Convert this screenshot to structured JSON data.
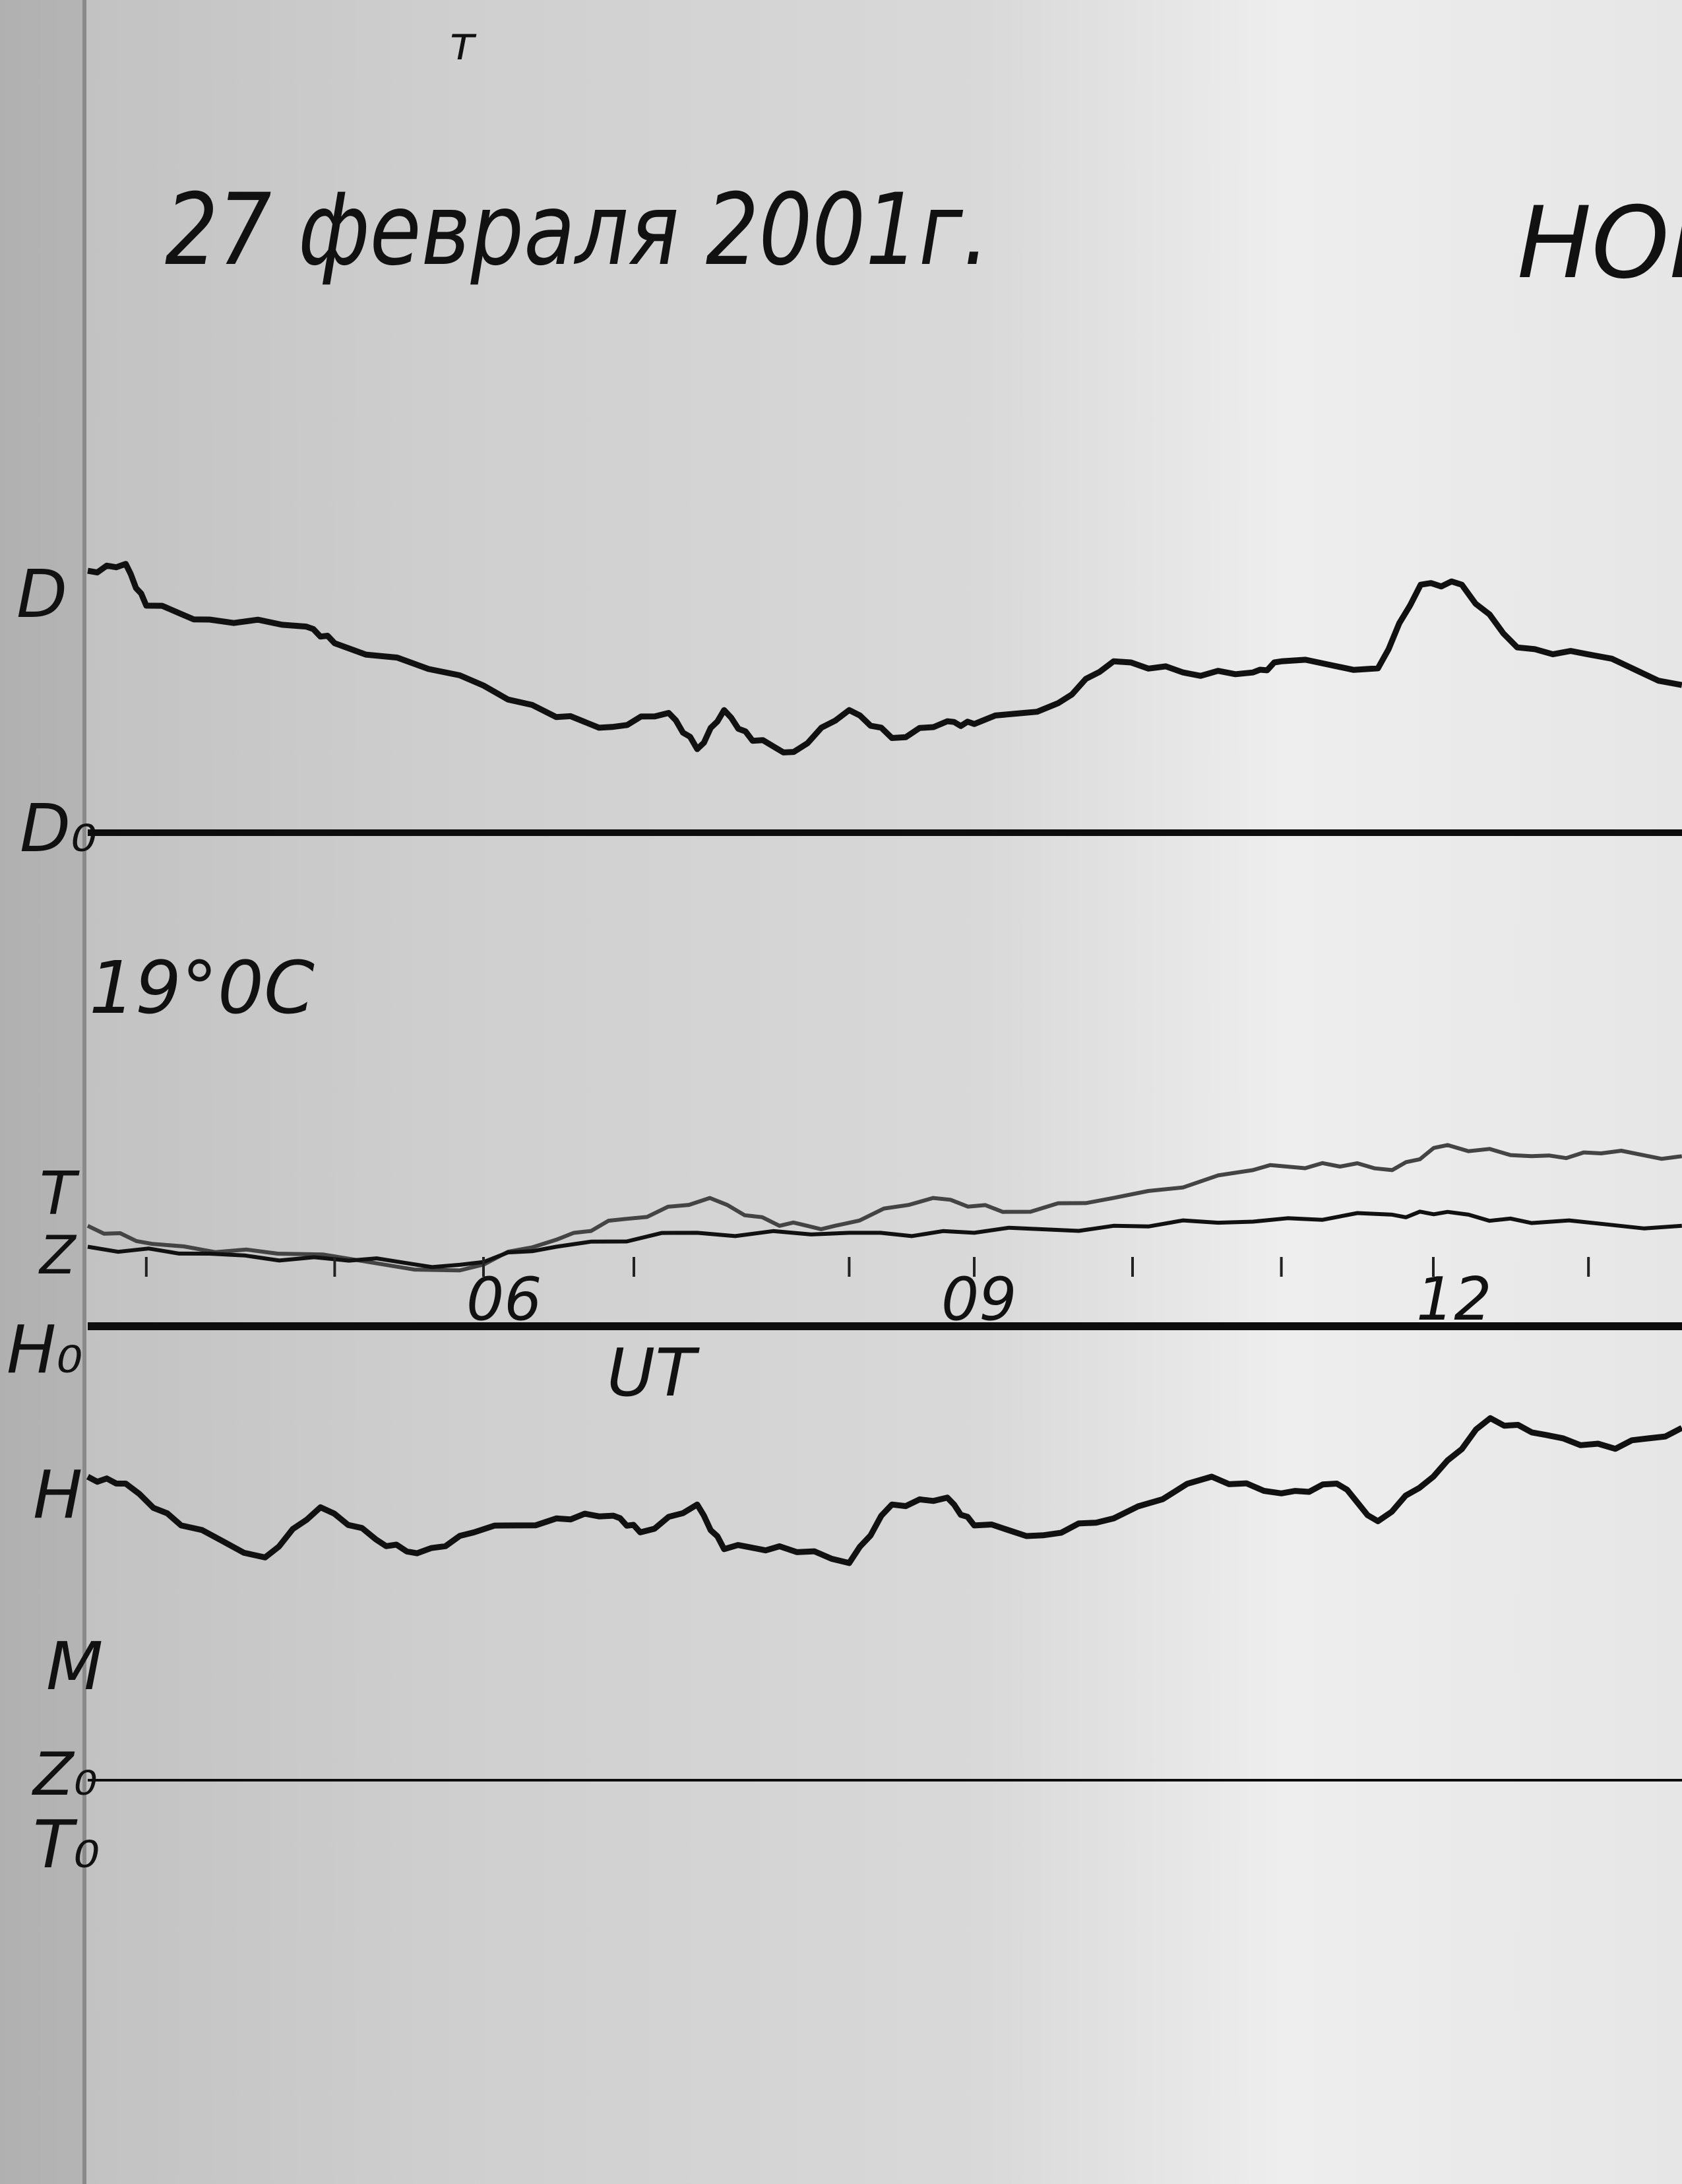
{
  "title": "27 февраля 2001г.",
  "title_right": "НОВ",
  "temperature": "19°0C",
  "mark_top": "т",
  "labels": {
    "D": "D",
    "D0": "D₀",
    "T": "T",
    "Z": "Z",
    "H0": "H₀",
    "H": "H",
    "M": "M",
    "Z0": "Z₀",
    "T0": "T₀"
  },
  "chart_data": {
    "type": "line",
    "xlabel": "UT",
    "x_ticks": [
      "06",
      "09",
      "12"
    ],
    "x_tick_values": [
      6,
      9,
      12
    ],
    "xlim": [
      3.4,
      13.47
    ],
    "grid": false,
    "colors": {
      "trace": "#111111",
      "T": "#444444",
      "baseline": "#0d0d0d",
      "paper": "#d4d4d4"
    },
    "series": [
      {
        "name": "D",
        "baseline": "D0",
        "x": [
          3.4,
          3.64,
          3.77,
          4.17,
          4.78,
          4.96,
          5.75,
          6.36,
          6.72,
          7.07,
          7.25,
          7.42,
          7.6,
          7.86,
          8.21,
          8.48,
          8.83,
          9.0,
          9.53,
          9.88,
          10.32,
          10.76,
          10.94,
          11.55,
          11.82,
          12.08,
          12.43,
          12.88,
          13.47
        ],
        "y": [
          188,
          193,
          163,
          153,
          148,
          136,
          113,
          83,
          76,
          86,
          60,
          88,
          66,
          58,
          88,
          68,
          80,
          78,
          93,
          123,
          115,
          115,
          123,
          118,
          178,
          178,
          133,
          128,
          106
        ]
      },
      {
        "name": "T",
        "baseline": "T0",
        "x": [
          3.4,
          3.81,
          4.6,
          5.75,
          6.36,
          6.8,
          7.33,
          7.77,
          8.12,
          8.74,
          9.18,
          9.88,
          10.76,
          11.2,
          11.64,
          11.99,
          12.52,
          12.96,
          13.47
        ],
        "y": [
          398,
          385,
          378,
          366,
          388,
          403,
          418,
          398,
          398,
          418,
          408,
          418,
          438,
          443,
          438,
          456,
          448,
          450,
          448
        ]
      },
      {
        "name": "Z",
        "baseline": "Z0",
        "x": [
          3.4,
          4.17,
          5.05,
          5.75,
          6.36,
          7.25,
          8.21,
          9.0,
          9.88,
          10.76,
          11.64,
          11.99,
          12.52,
          13.47
        ],
        "y": [
          383,
          378,
          373,
          370,
          383,
          393,
          393,
          393,
          398,
          401,
          406,
          408,
          400,
          398
        ]
      },
      {
        "name": "H",
        "baseline": "H0",
        "x": [
          3.4,
          3.64,
          3.99,
          4.52,
          4.87,
          5.22,
          5.48,
          5.84,
          6.36,
          6.72,
          6.89,
          7.25,
          7.42,
          7.77,
          8.21,
          8.48,
          8.83,
          9.0,
          9.44,
          9.88,
          10.5,
          10.94,
          11.29,
          11.55,
          11.9,
          12.26,
          12.61,
          13.05,
          13.47
        ],
        "y": [
          -108,
          -113,
          -143,
          -166,
          -130,
          -153,
          -163,
          -148,
          -138,
          -136,
          -148,
          -128,
          -160,
          -158,
          -170,
          -128,
          -123,
          -143,
          -150,
          -138,
          -108,
          -120,
          -113,
          -140,
          -108,
          -66,
          -78,
          -88,
          -73
        ]
      }
    ],
    "hour_marks": [
      3.77,
      4.96,
      5.9,
      6.85,
      8.21,
      9.0,
      10.0,
      10.94,
      11.9,
      12.88
    ]
  }
}
